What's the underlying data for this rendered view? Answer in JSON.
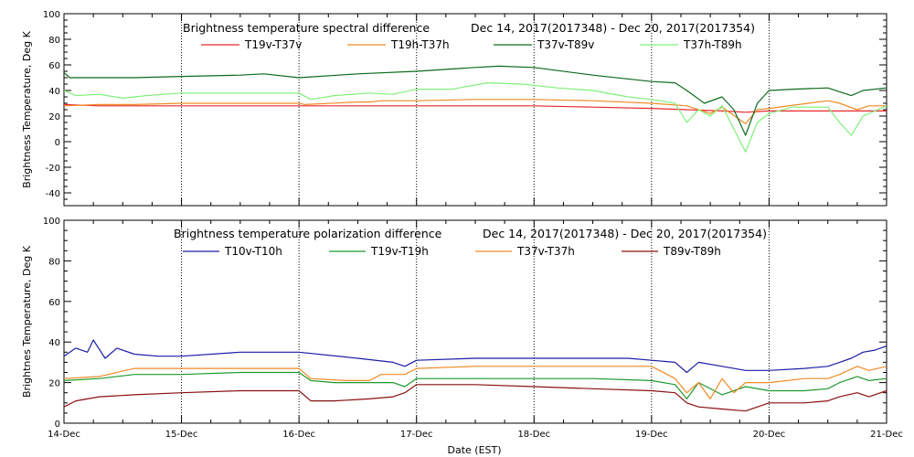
{
  "chart_data": [
    {
      "type": "line",
      "title": "Brightness temperature spectral difference",
      "date_range": "Dec 14, 2017(2017348) - Dec 20, 2017(2017354)",
      "ylabel": "Brightness Temperature, Deg K",
      "ylim": [
        -50,
        100
      ],
      "yticks": [
        -40,
        -20,
        0,
        20,
        40,
        60,
        80,
        100
      ],
      "xlim": [
        0,
        7
      ],
      "grid": "vertical-dotted-daily",
      "legend_position": "top",
      "series": [
        {
          "name": "T19v-T37v",
          "color": "#e8282d",
          "points": [
            [
              0,
              29
            ],
            [
              0.3,
              28
            ],
            [
              0.6,
              28
            ],
            [
              1.0,
              28
            ],
            [
              1.5,
              28
            ],
            [
              2.0,
              28
            ],
            [
              2.5,
              28
            ],
            [
              3.0,
              28
            ],
            [
              3.5,
              28
            ],
            [
              4.0,
              28
            ],
            [
              4.5,
              27
            ],
            [
              5.0,
              26
            ],
            [
              5.3,
              25
            ],
            [
              5.6,
              24
            ],
            [
              5.8,
              23
            ],
            [
              6.0,
              24
            ],
            [
              6.3,
              24
            ],
            [
              6.6,
              24
            ],
            [
              6.8,
              24
            ],
            [
              7.0,
              24
            ]
          ]
        },
        {
          "name": "T19h-T37h",
          "color": "#f08a24",
          "points": [
            [
              0,
              28
            ],
            [
              0.3,
              29
            ],
            [
              0.6,
              29
            ],
            [
              1.0,
              30
            ],
            [
              1.5,
              30
            ],
            [
              2.0,
              30
            ],
            [
              2.05,
              29
            ],
            [
              2.5,
              31
            ],
            [
              2.6,
              31
            ],
            [
              2.7,
              32
            ],
            [
              3.0,
              32
            ],
            [
              3.5,
              33
            ],
            [
              4.0,
              33
            ],
            [
              4.5,
              32
            ],
            [
              5.0,
              30
            ],
            [
              5.3,
              28
            ],
            [
              5.5,
              22
            ],
            [
              5.6,
              27
            ],
            [
              5.8,
              14
            ],
            [
              5.9,
              25
            ],
            [
              6.0,
              26
            ],
            [
              6.5,
              32
            ],
            [
              6.6,
              30
            ],
            [
              6.75,
              25
            ],
            [
              6.85,
              28
            ],
            [
              7.0,
              28
            ]
          ]
        },
        {
          "name": "T37v-T89v",
          "color": "#0c6a1c",
          "points": [
            [
              0,
              54
            ],
            [
              0.05,
              50
            ],
            [
              0.3,
              50
            ],
            [
              0.6,
              50
            ],
            [
              1.0,
              51
            ],
            [
              1.5,
              52
            ],
            [
              1.7,
              53
            ],
            [
              2.0,
              50
            ],
            [
              2.5,
              53
            ],
            [
              3.0,
              55
            ],
            [
              3.5,
              58
            ],
            [
              3.7,
              59
            ],
            [
              4.0,
              58
            ],
            [
              4.5,
              52
            ],
            [
              5.0,
              47
            ],
            [
              5.2,
              46
            ],
            [
              5.3,
              40
            ],
            [
              5.45,
              30
            ],
            [
              5.6,
              35
            ],
            [
              5.7,
              25
            ],
            [
              5.8,
              5
            ],
            [
              5.9,
              30
            ],
            [
              6.0,
              40
            ],
            [
              6.2,
              41
            ],
            [
              6.5,
              42
            ],
            [
              6.6,
              39
            ],
            [
              6.7,
              36
            ],
            [
              6.8,
              40
            ],
            [
              7.0,
              42
            ]
          ]
        },
        {
          "name": "T37h-T89h",
          "color": "#7ff07a",
          "points": [
            [
              0,
              40
            ],
            [
              0.1,
              36
            ],
            [
              0.3,
              37
            ],
            [
              0.5,
              34
            ],
            [
              0.7,
              36
            ],
            [
              1.0,
              38
            ],
            [
              1.5,
              38
            ],
            [
              2.0,
              38
            ],
            [
              2.1,
              33
            ],
            [
              2.3,
              36
            ],
            [
              2.6,
              38
            ],
            [
              2.8,
              37
            ],
            [
              3.0,
              41
            ],
            [
              3.3,
              41
            ],
            [
              3.6,
              46
            ],
            [
              3.9,
              45
            ],
            [
              4.2,
              42
            ],
            [
              4.5,
              40
            ],
            [
              4.8,
              35
            ],
            [
              5.0,
              33
            ],
            [
              5.2,
              30
            ],
            [
              5.3,
              15
            ],
            [
              5.4,
              25
            ],
            [
              5.5,
              20
            ],
            [
              5.6,
              28
            ],
            [
              5.7,
              10
            ],
            [
              5.8,
              -8
            ],
            [
              5.9,
              15
            ],
            [
              6.0,
              22
            ],
            [
              6.2,
              27
            ],
            [
              6.5,
              27
            ],
            [
              6.6,
              15
            ],
            [
              6.7,
              5
            ],
            [
              6.8,
              20
            ],
            [
              7.0,
              28
            ]
          ]
        }
      ]
    },
    {
      "type": "line",
      "title": "Brightness temperature polarization difference",
      "date_range": "Dec 14, 2017(2017348) - Dec 20, 2017(2017354)",
      "ylabel": "Brightnes Temperature, Deg K",
      "xlabel": "Date (EST)",
      "ylim": [
        0,
        100
      ],
      "yticks": [
        0,
        20,
        40,
        60,
        80,
        100
      ],
      "xlim": [
        0,
        7
      ],
      "xticks": [
        "14-Dec",
        "15-Dec",
        "16-Dec",
        "17-Dec",
        "18-Dec",
        "19-Dec",
        "20-Dec",
        "21-Dec"
      ],
      "grid": "vertical-dotted-daily",
      "legend_position": "top",
      "series": [
        {
          "name": "T10v-T10h",
          "color": "#1c1ca8",
          "points": [
            [
              0,
              33
            ],
            [
              0.1,
              37
            ],
            [
              0.2,
              35
            ],
            [
              0.25,
              41
            ],
            [
              0.35,
              32
            ],
            [
              0.45,
              37
            ],
            [
              0.6,
              34
            ],
            [
              0.8,
              33
            ],
            [
              1.0,
              33
            ],
            [
              1.5,
              35
            ],
            [
              2.0,
              35
            ],
            [
              2.5,
              32
            ],
            [
              2.8,
              30
            ],
            [
              2.9,
              28
            ],
            [
              3.0,
              31
            ],
            [
              3.5,
              32
            ],
            [
              4.0,
              32
            ],
            [
              4.5,
              32
            ],
            [
              4.8,
              32
            ],
            [
              5.0,
              31
            ],
            [
              5.2,
              30
            ],
            [
              5.3,
              25
            ],
            [
              5.4,
              30
            ],
            [
              5.6,
              28
            ],
            [
              5.8,
              26
            ],
            [
              6.0,
              26
            ],
            [
              6.3,
              27
            ],
            [
              6.5,
              28
            ],
            [
              6.6,
              30
            ],
            [
              6.7,
              32
            ],
            [
              6.8,
              35
            ],
            [
              6.9,
              36
            ],
            [
              7.0,
              38
            ]
          ]
        },
        {
          "name": "T19v-T19h",
          "color": "#1c9a2c",
          "points": [
            [
              0,
              21
            ],
            [
              0.3,
              22
            ],
            [
              0.6,
              24
            ],
            [
              1.0,
              24
            ],
            [
              1.5,
              25
            ],
            [
              2.0,
              25
            ],
            [
              2.1,
              21
            ],
            [
              2.3,
              20
            ],
            [
              2.6,
              20
            ],
            [
              2.8,
              20
            ],
            [
              2.9,
              18
            ],
            [
              3.0,
              22
            ],
            [
              3.5,
              22
            ],
            [
              4.0,
              22
            ],
            [
              4.5,
              22
            ],
            [
              5.0,
              21
            ],
            [
              5.2,
              19
            ],
            [
              5.3,
              12
            ],
            [
              5.4,
              20
            ],
            [
              5.6,
              14
            ],
            [
              5.8,
              18
            ],
            [
              6.0,
              16
            ],
            [
              6.3,
              16
            ],
            [
              6.5,
              17
            ],
            [
              6.6,
              20
            ],
            [
              6.75,
              23
            ],
            [
              6.85,
              21
            ],
            [
              7.0,
              22
            ]
          ]
        },
        {
          "name": "T37v-T37h",
          "color": "#f08a24",
          "points": [
            [
              0,
              22
            ],
            [
              0.3,
              23
            ],
            [
              0.6,
              27
            ],
            [
              1.0,
              27
            ],
            [
              1.5,
              27
            ],
            [
              2.0,
              27
            ],
            [
              2.1,
              22
            ],
            [
              2.4,
              21
            ],
            [
              2.6,
              21
            ],
            [
              2.7,
              24
            ],
            [
              2.9,
              24
            ],
            [
              3.0,
              27
            ],
            [
              3.5,
              28
            ],
            [
              4.0,
              28
            ],
            [
              4.5,
              28
            ],
            [
              5.0,
              28
            ],
            [
              5.2,
              22
            ],
            [
              5.3,
              15
            ],
            [
              5.4,
              20
            ],
            [
              5.5,
              12
            ],
            [
              5.6,
              22
            ],
            [
              5.7,
              15
            ],
            [
              5.8,
              20
            ],
            [
              6.0,
              20
            ],
            [
              6.3,
              22
            ],
            [
              6.5,
              22
            ],
            [
              6.6,
              24
            ],
            [
              6.75,
              28
            ],
            [
              6.85,
              26
            ],
            [
              7.0,
              28
            ]
          ]
        },
        {
          "name": "T89v-T89h",
          "color": "#8a1010",
          "points": [
            [
              0,
              8
            ],
            [
              0.1,
              11
            ],
            [
              0.3,
              13
            ],
            [
              0.6,
              14
            ],
            [
              1.0,
              15
            ],
            [
              1.5,
              16
            ],
            [
              2.0,
              16
            ],
            [
              2.1,
              11
            ],
            [
              2.3,
              11
            ],
            [
              2.6,
              12
            ],
            [
              2.8,
              13
            ],
            [
              2.9,
              15
            ],
            [
              3.0,
              19
            ],
            [
              3.5,
              19
            ],
            [
              4.0,
              18
            ],
            [
              4.5,
              17
            ],
            [
              5.0,
              16
            ],
            [
              5.2,
              15
            ],
            [
              5.3,
              10
            ],
            [
              5.4,
              8
            ],
            [
              5.6,
              7
            ],
            [
              5.8,
              6
            ],
            [
              6.0,
              10
            ],
            [
              6.3,
              10
            ],
            [
              6.5,
              11
            ],
            [
              6.6,
              13
            ],
            [
              6.75,
              15
            ],
            [
              6.85,
              13
            ],
            [
              7.0,
              16
            ]
          ]
        }
      ]
    }
  ]
}
